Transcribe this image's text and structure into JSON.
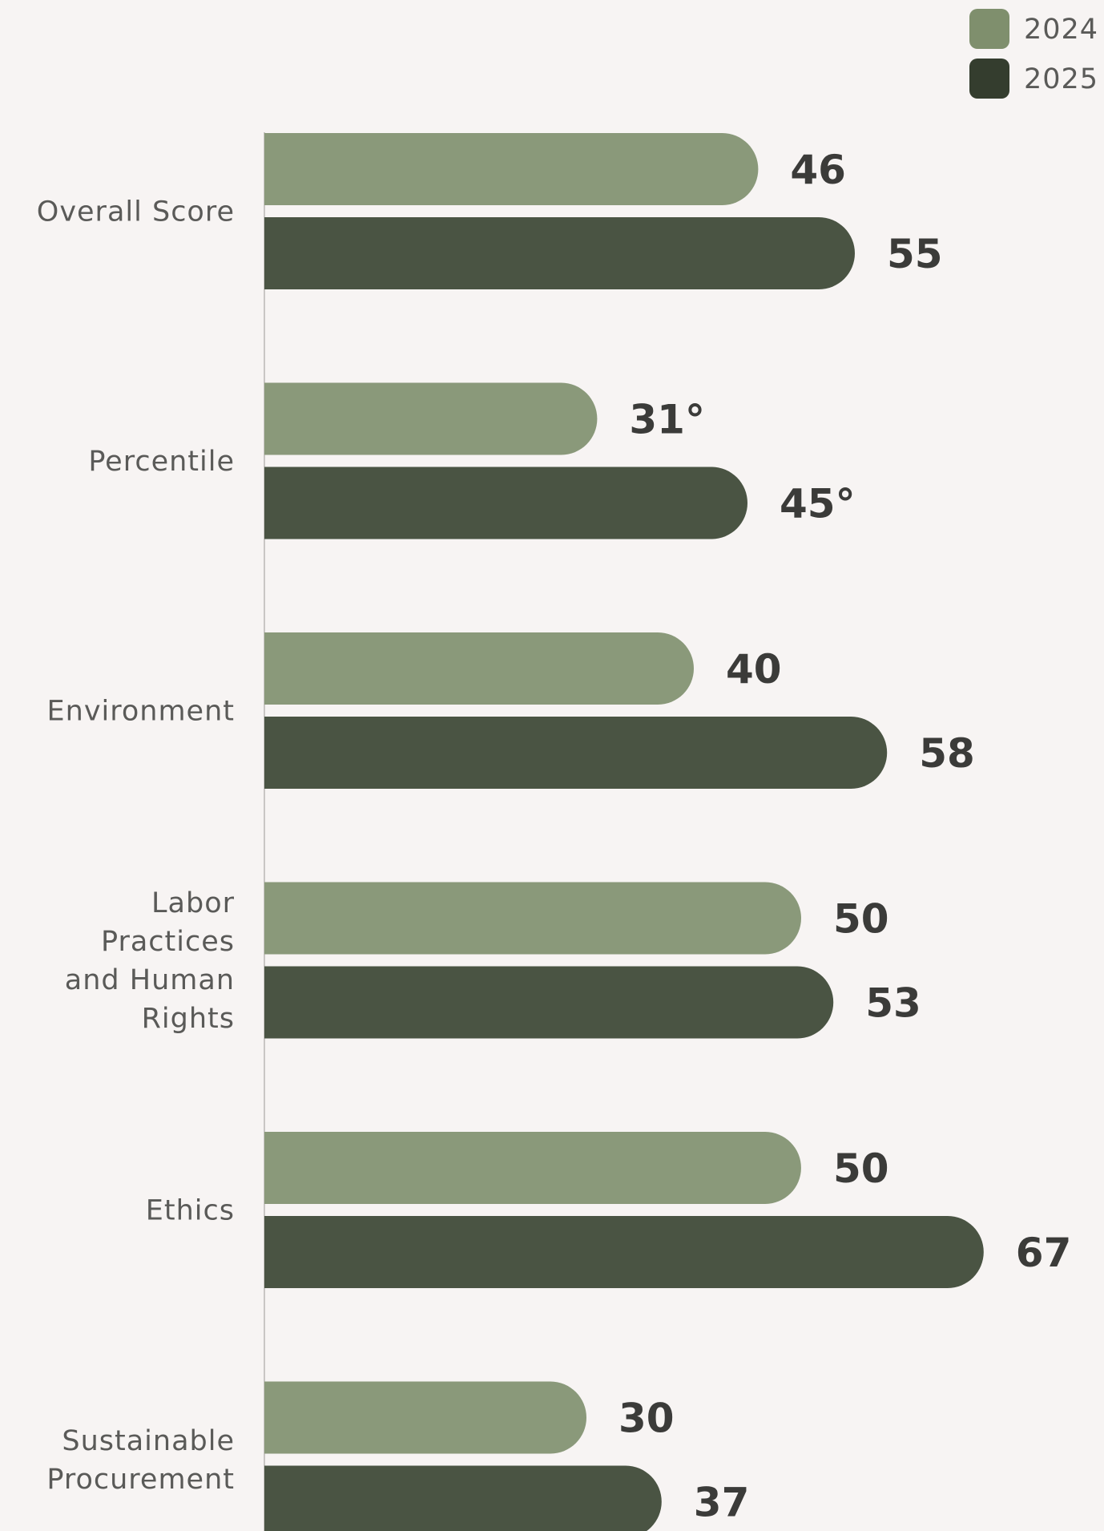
{
  "chart_data": {
    "type": "bar",
    "orientation": "horizontal",
    "categories": [
      "Overall Score",
      "Percentile",
      "Environment",
      "Labor Practices and Human Rights",
      "Ethics",
      "Sustainable Procurement"
    ],
    "category_lines": [
      [
        "Overall Score"
      ],
      [
        "Percentile"
      ],
      [
        "Environment"
      ],
      [
        "Labor",
        "Practices",
        "and Human",
        "Rights"
      ],
      [
        "Ethics"
      ],
      [
        "Sustainable",
        "Procurement"
      ]
    ],
    "series": [
      {
        "name": "2024",
        "color": "#8a997a",
        "legend_color": "#7f8f6d",
        "values": [
          46,
          31,
          40,
          50,
          50,
          30
        ],
        "labels": [
          "46",
          "31°",
          "40",
          "50",
          "50",
          "30"
        ]
      },
      {
        "name": "2025",
        "color": "#4a5443",
        "legend_color": "#343d2e",
        "values": [
          55,
          45,
          58,
          53,
          67,
          37
        ],
        "labels": [
          "55",
          "45°",
          "58",
          "53",
          "67",
          "37"
        ]
      }
    ],
    "title": "",
    "xlabel": "",
    "ylabel": "",
    "xlim": [
      0,
      100
    ],
    "grid": false,
    "legend": "top-right"
  }
}
